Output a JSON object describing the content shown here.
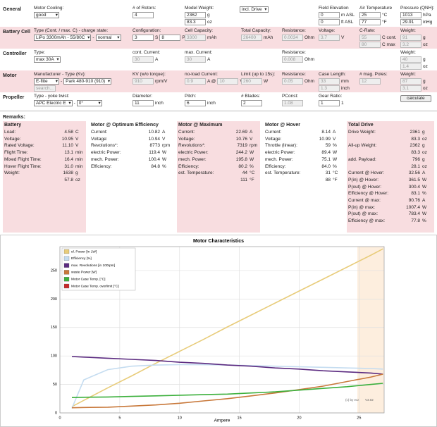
{
  "form": {
    "sections": [
      {
        "label": "General",
        "shaded": false,
        "fields": [
          {
            "label": "Motor Cooling:",
            "rows": [
              [
                {
                  "select": "good"
                }
              ]
            ]
          },
          {
            "label": "# of Rotors:",
            "rows": [
              [
                {
                  "input": "4"
                }
              ]
            ]
          },
          {
            "label": "Model Weight:",
            "rows": [
              [
                {
                  "input": "2362"
                },
                {
                  "unit": "g"
                }
              ],
              [
                {
                  "input": "83.3"
                },
                {
                  "unit": "oz"
                }
              ]
            ]
          },
          {
            "rows": [
              [
                {
                  "select": "incl. Drive"
                }
              ]
            ]
          },
          {
            "label": "Field Elevation",
            "rows": [
              [
                {
                  "input": "0"
                },
                {
                  "unit": "m ASL"
                }
              ],
              [
                {
                  "input": "0"
                },
                {
                  "unit": "ft ASL"
                }
              ]
            ]
          },
          {
            "label": "Air Temperature",
            "rows": [
              [
                {
                  "input": "25"
                },
                {
                  "unit": "°C"
                }
              ],
              [
                {
                  "input": "77"
                },
                {
                  "unit": "°F"
                }
              ]
            ]
          },
          {
            "label": "Pressure (QNH):",
            "rows": [
              [
                {
                  "input": "1013"
                },
                {
                  "unit": "hPa"
                }
              ],
              [
                {
                  "input": "29.91"
                },
                {
                  "unit": "inHg"
                }
              ]
            ]
          }
        ]
      },
      {
        "label": "Battery Cell",
        "shaded": true,
        "fields": [
          {
            "label": "Type (Cont. / max. C) - charge state:",
            "rows": [
              [
                {
                  "select": "LiPo 3300mAh - 55/80C"
                },
                {
                  "unit": "-"
                },
                {
                  "select": "normal"
                }
              ]
            ]
          },
          {
            "label": "Configuration:",
            "rows": [
              [
                {
                  "input": "3"
                },
                {
                  "unit": "S"
                },
                {
                  "input": "8"
                },
                {
                  "unit": "P"
                }
              ]
            ]
          },
          {
            "label": "Cell Capacity:",
            "rows": [
              [
                {
                  "output": "3300"
                },
                {
                  "unit": "mAh"
                }
              ]
            ]
          },
          {
            "label": "Total Capacity:",
            "rows": [
              [
                {
                  "output": "26400"
                },
                {
                  "unit": "mAh"
                }
              ]
            ]
          },
          {
            "label": "Resistance:",
            "rows": [
              [
                {
                  "output": "0.0034"
                },
                {
                  "unit": "Ohm"
                }
              ]
            ]
          },
          {
            "label": "Voltage:",
            "rows": [
              [
                {
                  "output": "3.7"
                },
                {
                  "unit": "V"
                }
              ]
            ]
          },
          {
            "label": "C-Rate:",
            "rows": [
              [
                {
                  "output": "55"
                },
                {
                  "unit": "C cont."
                }
              ],
              [
                {
                  "output": "80"
                },
                {
                  "unit": "C max"
                }
              ]
            ]
          },
          {
            "label": "Weight:",
            "rows": [
              [
                {
                  "output": "91"
                },
                {
                  "unit": "g"
                }
              ],
              [
                {
                  "output": "3.2"
                },
                {
                  "unit": "oz"
                }
              ]
            ]
          }
        ]
      },
      {
        "label": "Controller",
        "shaded": false,
        "fields": [
          {
            "label": "Type:",
            "rows": [
              [
                {
                  "select": "max 30A"
                }
              ]
            ]
          },
          {
            "label": "cont. Current:",
            "rows": [
              [
                {
                  "output": "30"
                },
                {
                  "unit": "A"
                }
              ]
            ]
          },
          {
            "label": "max. Current:",
            "rows": [
              [
                {
                  "output": "30"
                },
                {
                  "unit": "A"
                }
              ]
            ]
          },
          {
            "label": "Resistance:",
            "rows": [
              [
                {
                  "output": "0.008"
                },
                {
                  "unit": "Ohm"
                }
              ]
            ]
          },
          {
            "label": "Weight:",
            "rows": [
              [
                {
                  "output": "40"
                },
                {
                  "unit": "g"
                }
              ],
              [
                {
                  "output": "1.4"
                },
                {
                  "unit": "oz"
                }
              ]
            ]
          }
        ]
      },
      {
        "label": "Motor",
        "shaded": true,
        "fields": [
          {
            "label": "Manufacturer - Type (Kv):",
            "rows": [
              [
                {
                  "select": "E-flite"
                },
                {
                  "unit": "-"
                },
                {
                  "select": "Park 480-910 (910)"
                }
              ],
              [
                {
                  "output": "search..."
                }
              ]
            ]
          },
          {
            "label": "KV (w/o torque):",
            "rows": [
              [
                {
                  "output": "910"
                },
                {
                  "unit": "rpm/V"
                }
              ]
            ]
          },
          {
            "label": "no-load Current:",
            "rows": [
              [
                {
                  "output": "0.9"
                },
                {
                  "unit": "A @"
                },
                {
                  "output": "10"
                },
                {
                  "unit": "V"
                }
              ]
            ]
          },
          {
            "label": "Limit (up to 15s):",
            "rows": [
              [
                {
                  "output": "260"
                },
                {
                  "unit": "W"
                }
              ]
            ]
          },
          {
            "label": "Resistance:",
            "rows": [
              [
                {
                  "output": "0.05"
                },
                {
                  "unit": "Ohm"
                }
              ]
            ]
          },
          {
            "label": "Case Length:",
            "rows": [
              [
                {
                  "output": "33"
                },
                {
                  "unit": "mm"
                }
              ],
              [
                {
                  "output": "1.3"
                },
                {
                  "unit": "inch"
                }
              ]
            ]
          },
          {
            "label": "# mag. Poles:",
            "rows": [
              [
                {
                  "output": "12"
                }
              ]
            ]
          },
          {
            "label": "Weight:",
            "rows": [
              [
                {
                  "output": "87"
                },
                {
                  "unit": "g"
                }
              ],
              [
                {
                  "output": "3.1"
                },
                {
                  "unit": "oz"
                }
              ]
            ]
          }
        ]
      },
      {
        "label": "Propeller",
        "shaded": false,
        "fields": [
          {
            "label": "Type - yoke twist:",
            "rows": [
              [
                {
                  "select": "APC Electric E"
                },
                {
                  "unit": "-"
                },
                {
                  "select": "0°"
                }
              ]
            ]
          },
          {
            "label": "Diameter:",
            "rows": [
              [
                {
                  "input": "11"
                },
                {
                  "unit": "inch"
                }
              ]
            ]
          },
          {
            "label": "Pitch:",
            "rows": [
              [
                {
                  "input": "6"
                },
                {
                  "unit": "inch"
                }
              ]
            ]
          },
          {
            "label": "# Blades:",
            "rows": [
              [
                {
                  "input": "2"
                }
              ]
            ]
          },
          {
            "label": "PConst:",
            "rows": [
              [
                {
                  "output": "1.08"
                }
              ]
            ]
          },
          {
            "label": "Gear Ratio:",
            "rows": [
              [
                {
                  "input": "1"
                },
                {
                  "unit": "1"
                }
              ]
            ]
          },
          {
            "rows": [
              [
                {
                  "button": "calculate"
                }
              ]
            ]
          }
        ]
      }
    ]
  },
  "results": {
    "title": "Remarks:",
    "columns": [
      {
        "title": "Battery",
        "shaded": true,
        "rows": [
          {
            "label": "Load:",
            "value": "4.58",
            "unit": "C"
          },
          {
            "label": "Voltage:",
            "value": "10.95",
            "unit": "V"
          },
          {
            "label": "Rated Voltage:",
            "value": "11.10",
            "unit": "V"
          },
          {
            "label": "Flight Time:",
            "value": "13.1",
            "unit": "min"
          },
          {
            "label": "Mixed Flight Time:",
            "value": "16.4",
            "unit": "min"
          },
          {
            "label": "Hover Flight Time:",
            "value": "31.0",
            "unit": "min"
          },
          {
            "label": "Weight:",
            "value": "1638",
            "unit": "g"
          },
          {
            "value": "57.8",
            "unit": "oz"
          }
        ]
      },
      {
        "title": "Motor @ Optimum Efficiency",
        "shaded": false,
        "rows": [
          {
            "label": "Current:",
            "value": "10.82",
            "unit": "A"
          },
          {
            "label": "Voltage:",
            "value": "10.94",
            "unit": "V"
          },
          {
            "label": "Revolutions*:",
            "value": "8773",
            "unit": "rpm"
          },
          {
            "label": "electric Power:",
            "value": "119.4",
            "unit": "W"
          },
          {
            "label": "mech. Power:",
            "value": "100.4",
            "unit": "W"
          },
          {
            "label": "Efficiency:",
            "value": "84.8",
            "unit": "%"
          }
        ]
      },
      {
        "title": "Motor @ Maximum",
        "shaded": true,
        "rows": [
          {
            "label": "Current:",
            "value": "22.69",
            "unit": "A"
          },
          {
            "label": "Voltage:",
            "value": "10.76",
            "unit": "V"
          },
          {
            "label": "Revolutions*:",
            "value": "7319",
            "unit": "rpm"
          },
          {
            "label": "electric Power:",
            "value": "244.2",
            "unit": "W"
          },
          {
            "label": "mech. Power:",
            "value": "195.8",
            "unit": "W"
          },
          {
            "label": "Efficiency:",
            "value": "80.2",
            "unit": "%"
          },
          {
            "label": "est. Temperature:",
            "value": "44",
            "unit": "°C"
          },
          {
            "value": "111",
            "unit": "°F"
          }
        ]
      },
      {
        "title": "Motor @ Hover",
        "shaded": false,
        "rows": [
          {
            "label": "Current:",
            "value": "8.14",
            "unit": "A"
          },
          {
            "label": "Voltage:",
            "value": "10.99",
            "unit": "V"
          },
          {
            "label": "Throttle (linear):",
            "value": "59",
            "unit": "%"
          },
          {
            "label": "electric Power:",
            "value": "89.4",
            "unit": "W"
          },
          {
            "label": "mech. Power:",
            "value": "75.1",
            "unit": "W"
          },
          {
            "label": "Efficiency:",
            "value": "84.0",
            "unit": "%"
          },
          {
            "label": "est. Temperature:",
            "value": "31",
            "unit": "°C"
          },
          {
            "value": "88",
            "unit": "°F"
          }
        ]
      },
      {
        "title": "Total Drive",
        "shaded": true,
        "rows": [
          {
            "label": "Drive Weight:",
            "value": "2361",
            "unit": "g"
          },
          {
            "value": "83.3",
            "unit": "oz"
          },
          {
            "label": "All-up Weight:",
            "value": "2362",
            "unit": "g"
          },
          {
            "value": "83.3",
            "unit": "oz"
          },
          {
            "label": "add. Payload:",
            "value": "796",
            "unit": "g"
          },
          {
            "value": "28.1",
            "unit": "oz"
          },
          {
            "label": "Current @ Hover:",
            "value": "32.56",
            "unit": "A"
          },
          {
            "label": "P(in) @ Hover:",
            "value": "361.5",
            "unit": "W"
          },
          {
            "label": "P(out) @ Hover:",
            "value": "300.4",
            "unit": "W"
          },
          {
            "label": "Efficiency @ Hover:",
            "value": "83.1",
            "unit": "%"
          },
          {
            "label": "Current @ max:",
            "value": "90.76",
            "unit": "A"
          },
          {
            "label": "P(in) @ max:",
            "value": "1007.4",
            "unit": "W"
          },
          {
            "label": "P(out) @ max:",
            "value": "783.4",
            "unit": "W"
          },
          {
            "label": "Efficiency @ max:",
            "value": "77.8",
            "unit": "%"
          }
        ]
      }
    ]
  },
  "chart_data": {
    "type": "line",
    "title": "Motor Characteristics",
    "x_label": "Ampere",
    "credit": "(c) by eca",
    "version": "V3.02",
    "x": [
      1,
      2,
      4,
      6,
      8,
      10,
      12,
      14,
      16,
      18,
      20,
      22,
      24,
      26,
      27
    ],
    "xlim": [
      0,
      27.1
    ],
    "xticks": [
      0,
      5,
      10,
      15,
      20,
      25
    ],
    "ylim": [
      0,
      292
    ],
    "yticks": [
      0,
      50,
      100,
      150,
      200,
      250
    ],
    "grid": true,
    "series": [
      {
        "name": "el. Power [in 1W]",
        "color": "#e8cc7a",
        "values": [
          11,
          22,
          44,
          65,
          87,
          108,
          129,
          151,
          172,
          193,
          214,
          235,
          256,
          277,
          288
        ]
      },
      {
        "name": "Efficiency [%]",
        "color": "#c4dcf0",
        "values": [
          8,
          58,
          76,
          82,
          84,
          84.8,
          84.6,
          84,
          83,
          82,
          81,
          80,
          79,
          78,
          77
        ]
      },
      {
        "name": "max. Revolutions [in 100rpm]",
        "color": "#5b2a80",
        "values": [
          99,
          98,
          96,
          94,
          92,
          89,
          87,
          84,
          82,
          79,
          77,
          74,
          72,
          70,
          68
        ]
      },
      {
        "name": "waste Power [W]",
        "color": "#c8783a",
        "values": [
          9,
          9.5,
          10,
          12,
          14,
          17,
          21,
          25,
          30,
          35,
          41,
          47,
          55,
          63,
          68
        ]
      },
      {
        "name": "Motor Case Temp. [°C]",
        "color": "#3cb03c",
        "values": [
          27,
          27.5,
          28,
          29,
          30,
          31,
          32,
          33,
          35,
          37,
          40,
          43,
          46,
          50,
          52
        ]
      },
      {
        "name": "Motor Case Temp. overlimit [°C]",
        "color": "#c62828",
        "values": [
          null,
          null,
          null,
          null,
          null,
          null,
          null,
          null,
          null,
          null,
          null,
          null,
          null,
          null,
          null
        ]
      }
    ]
  }
}
